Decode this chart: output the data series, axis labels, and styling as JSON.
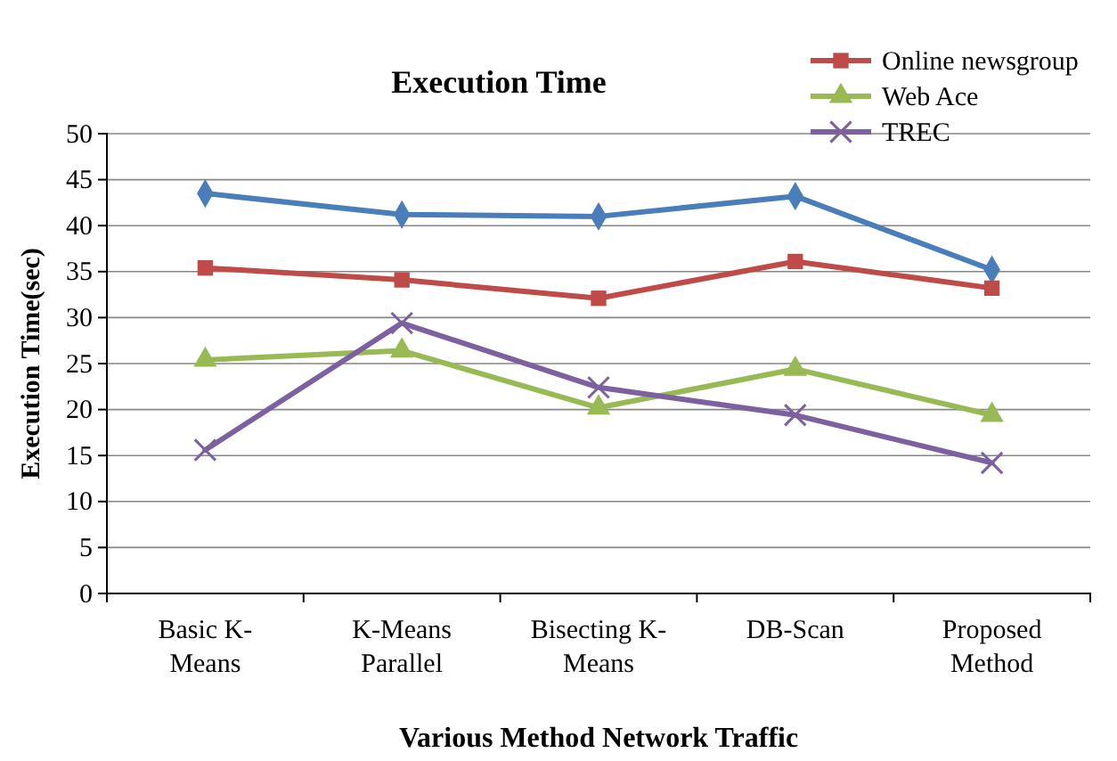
{
  "chart_data": {
    "type": "line",
    "title": "Execution Time",
    "xlabel": "Various Method Network Traffic",
    "ylabel": "Execution Time(sec)",
    "categories": [
      "Basic K-Means",
      "K-Means Parallel",
      "Bisecting K-Means",
      "DB-Scan",
      "Proposed Method"
    ],
    "series": [
      {
        "color": "#4a7ebb",
        "marker": "diamond",
        "values": [
          43.5,
          41.2,
          41,
          43.2,
          35.2
        ]
      },
      {
        "name": "Online newsgroup",
        "color": "#be4b48",
        "marker": "square",
        "values": [
          35.4,
          34.1,
          32.1,
          36.1,
          33.2
        ]
      },
      {
        "name": "Web Ace",
        "color": "#98b954",
        "marker": "triangle",
        "values": [
          25.4,
          26.4,
          20.2,
          24.4,
          19.4
        ]
      },
      {
        "name": "TREC",
        "color": "#7d60a0",
        "marker": "cross",
        "values": [
          15.6,
          29.4,
          22.4,
          19.4,
          14.2
        ]
      }
    ],
    "ylim": [
      0,
      50
    ],
    "yticks": [
      0,
      5,
      10,
      15,
      20,
      25,
      30,
      35,
      40,
      45,
      50
    ],
    "grid": "y",
    "legend": "top right",
    "line_style": "solid"
  }
}
